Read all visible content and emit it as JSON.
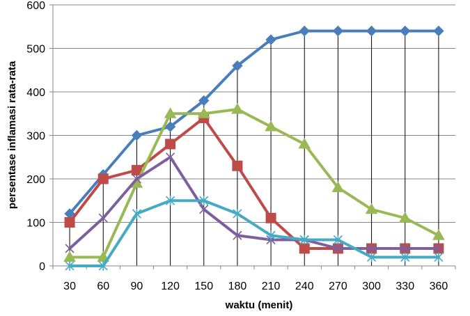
{
  "chart_data": {
    "type": "line",
    "title": "",
    "xlabel": "waktu (menit)",
    "ylabel": "persentase inflamasi rata-rata",
    "x": [
      30,
      60,
      90,
      120,
      150,
      180,
      210,
      240,
      270,
      300,
      330,
      360
    ],
    "ylim": [
      0,
      600
    ],
    "yticks": [
      0,
      100,
      200,
      300,
      400,
      500,
      600
    ],
    "grid": "horizontal major gridlines; vertical drop lines at each x category",
    "legend": "none",
    "series": [
      {
        "color": "#4a7ebb",
        "marker": "diamond",
        "values": [
          120,
          210,
          300,
          320,
          380,
          460,
          520,
          540,
          540,
          540,
          540,
          540
        ]
      },
      {
        "color": "#be4b48",
        "marker": "square",
        "values": [
          100,
          200,
          220,
          280,
          340,
          230,
          110,
          40,
          40,
          40,
          40,
          40
        ]
      },
      {
        "color": "#98b954",
        "marker": "triangle",
        "values": [
          20,
          20,
          190,
          350,
          350,
          360,
          320,
          280,
          180,
          130,
          110,
          70
        ]
      },
      {
        "color": "#7d5fa0",
        "marker": "x",
        "values": [
          40,
          110,
          200,
          250,
          130,
          70,
          60,
          60,
          40,
          40,
          40,
          40
        ]
      },
      {
        "color": "#46aac5",
        "marker": "star",
        "values": [
          0,
          0,
          120,
          150,
          150,
          120,
          70,
          60,
          60,
          20,
          20,
          20
        ]
      }
    ]
  }
}
